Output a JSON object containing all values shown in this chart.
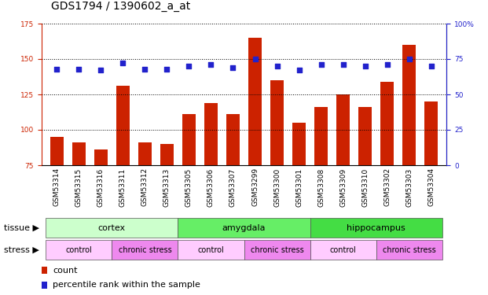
{
  "title": "GDS1794 / 1390602_a_at",
  "samples": [
    "GSM53314",
    "GSM53315",
    "GSM53316",
    "GSM53311",
    "GSM53312",
    "GSM53313",
    "GSM53305",
    "GSM53306",
    "GSM53307",
    "GSM53299",
    "GSM53300",
    "GSM53301",
    "GSM53308",
    "GSM53309",
    "GSM53310",
    "GSM53302",
    "GSM53303",
    "GSM53304"
  ],
  "counts": [
    95,
    91,
    86,
    131,
    91,
    90,
    111,
    119,
    111,
    165,
    135,
    105,
    116,
    125,
    116,
    134,
    160,
    120
  ],
  "percentiles": [
    68,
    68,
    67,
    72,
    68,
    68,
    70,
    71,
    69,
    75,
    70,
    67,
    71,
    71,
    70,
    71,
    75,
    70
  ],
  "bar_color": "#cc2200",
  "dot_color": "#2222cc",
  "left_ylim": [
    75,
    175
  ],
  "left_yticks": [
    75,
    100,
    125,
    150,
    175
  ],
  "right_ylim": [
    0,
    100
  ],
  "right_yticks": [
    0,
    25,
    50,
    75,
    100
  ],
  "right_yticklabels": [
    "0",
    "25",
    "50",
    "75",
    "100%"
  ],
  "tissue_groups": [
    {
      "label": "cortex",
      "start": 0,
      "end": 6,
      "color": "#ccffcc"
    },
    {
      "label": "amygdala",
      "start": 6,
      "end": 12,
      "color": "#66ee66"
    },
    {
      "label": "hippocampus",
      "start": 12,
      "end": 18,
      "color": "#44dd44"
    }
  ],
  "stress_groups": [
    {
      "label": "control",
      "start": 0,
      "end": 3,
      "color": "#ffccff"
    },
    {
      "label": "chronic stress",
      "start": 3,
      "end": 6,
      "color": "#ee88ee"
    },
    {
      "label": "control",
      "start": 6,
      "end": 9,
      "color": "#ffccff"
    },
    {
      "label": "chronic stress",
      "start": 9,
      "end": 12,
      "color": "#ee88ee"
    },
    {
      "label": "control",
      "start": 12,
      "end": 15,
      "color": "#ffccff"
    },
    {
      "label": "chronic stress",
      "start": 15,
      "end": 18,
      "color": "#ee88ee"
    }
  ],
  "tissue_label": "tissue",
  "stress_label": "stress",
  "legend_count_label": "count",
  "legend_pct_label": "percentile rank within the sample",
  "title_fontsize": 10,
  "tick_fontsize": 6.5,
  "label_fontsize": 8,
  "annot_fontsize": 8,
  "left_axis_color": "#cc2200",
  "right_axis_color": "#2222cc",
  "xticklabel_bg": "#d8d8d8"
}
